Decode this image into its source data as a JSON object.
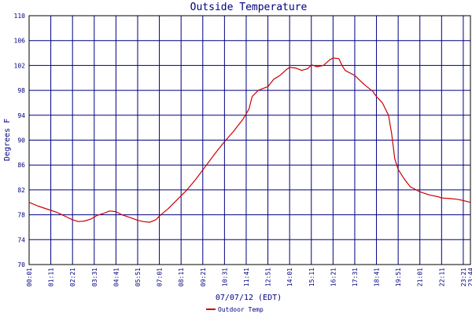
{
  "chart_data": {
    "type": "line",
    "title": "Outside Temperature",
    "ylabel": "Degrees F",
    "xlabel": "07/07/12 (EDT)",
    "ylim": [
      70,
      110
    ],
    "yticks": [
      70,
      74,
      78,
      82,
      86,
      90,
      94,
      98,
      102,
      106,
      110
    ],
    "xticks": [
      "00:01",
      "01:11",
      "02:21",
      "03:31",
      "04:41",
      "05:51",
      "07:01",
      "08:11",
      "09:21",
      "10:31",
      "11:41",
      "12:51",
      "14:01",
      "15:11",
      "16:21",
      "17:31",
      "18:41",
      "19:51",
      "21:01",
      "22:11",
      "23:21",
      "23:44"
    ],
    "grid": true,
    "colors": {
      "grid": "#000080",
      "line": "#cc0000",
      "text": "#000080",
      "axis": "#000000"
    },
    "legend": {
      "placement": "bottom-left"
    },
    "series": [
      {
        "name": "Outdoor Temp",
        "color": "#cc0000",
        "points": [
          [
            "00:01",
            80.0
          ],
          [
            "00:30",
            79.4
          ],
          [
            "01:00",
            78.9
          ],
          [
            "01:30",
            78.4
          ],
          [
            "02:00",
            77.7
          ],
          [
            "02:21",
            77.2
          ],
          [
            "02:40",
            76.9
          ],
          [
            "03:00",
            77.0
          ],
          [
            "03:20",
            77.3
          ],
          [
            "03:40",
            77.9
          ],
          [
            "04:00",
            78.2
          ],
          [
            "04:20",
            78.6
          ],
          [
            "04:41",
            78.5
          ],
          [
            "05:00",
            78.0
          ],
          [
            "05:30",
            77.5
          ],
          [
            "05:51",
            77.1
          ],
          [
            "06:10",
            76.9
          ],
          [
            "06:30",
            76.8
          ],
          [
            "06:50",
            77.2
          ],
          [
            "07:01",
            77.8
          ],
          [
            "07:30",
            79.0
          ],
          [
            "08:00",
            80.5
          ],
          [
            "08:30",
            82.0
          ],
          [
            "09:00",
            83.8
          ],
          [
            "09:30",
            85.8
          ],
          [
            "10:00",
            87.8
          ],
          [
            "10:30",
            89.7
          ],
          [
            "11:00",
            91.4
          ],
          [
            "11:30",
            93.3
          ],
          [
            "11:50",
            95.0
          ],
          [
            "12:00",
            97.0
          ],
          [
            "12:20",
            98.0
          ],
          [
            "12:51",
            98.6
          ],
          [
            "13:10",
            99.8
          ],
          [
            "13:30",
            100.4
          ],
          [
            "13:50",
            101.3
          ],
          [
            "14:01",
            101.7
          ],
          [
            "14:20",
            101.6
          ],
          [
            "14:40",
            101.2
          ],
          [
            "15:00",
            101.5
          ],
          [
            "15:11",
            102.1
          ],
          [
            "15:30",
            101.8
          ],
          [
            "15:50",
            102.0
          ],
          [
            "16:10",
            102.9
          ],
          [
            "16:21",
            103.2
          ],
          [
            "16:40",
            103.1
          ],
          [
            "16:50",
            102.0
          ],
          [
            "17:00",
            101.2
          ],
          [
            "17:31",
            100.4
          ],
          [
            "18:00",
            99.0
          ],
          [
            "18:30",
            97.8
          ],
          [
            "18:41",
            97.0
          ],
          [
            "19:00",
            96.0
          ],
          [
            "19:20",
            94.0
          ],
          [
            "19:30",
            91.0
          ],
          [
            "19:40",
            87.0
          ],
          [
            "19:51",
            85.3
          ],
          [
            "20:10",
            83.8
          ],
          [
            "20:30",
            82.5
          ],
          [
            "21:01",
            81.7
          ],
          [
            "21:30",
            81.2
          ],
          [
            "22:00",
            80.9
          ],
          [
            "22:11",
            80.7
          ],
          [
            "22:40",
            80.6
          ],
          [
            "23:00",
            80.5
          ],
          [
            "23:21",
            80.3
          ],
          [
            "23:44",
            80.0
          ]
        ]
      }
    ]
  }
}
